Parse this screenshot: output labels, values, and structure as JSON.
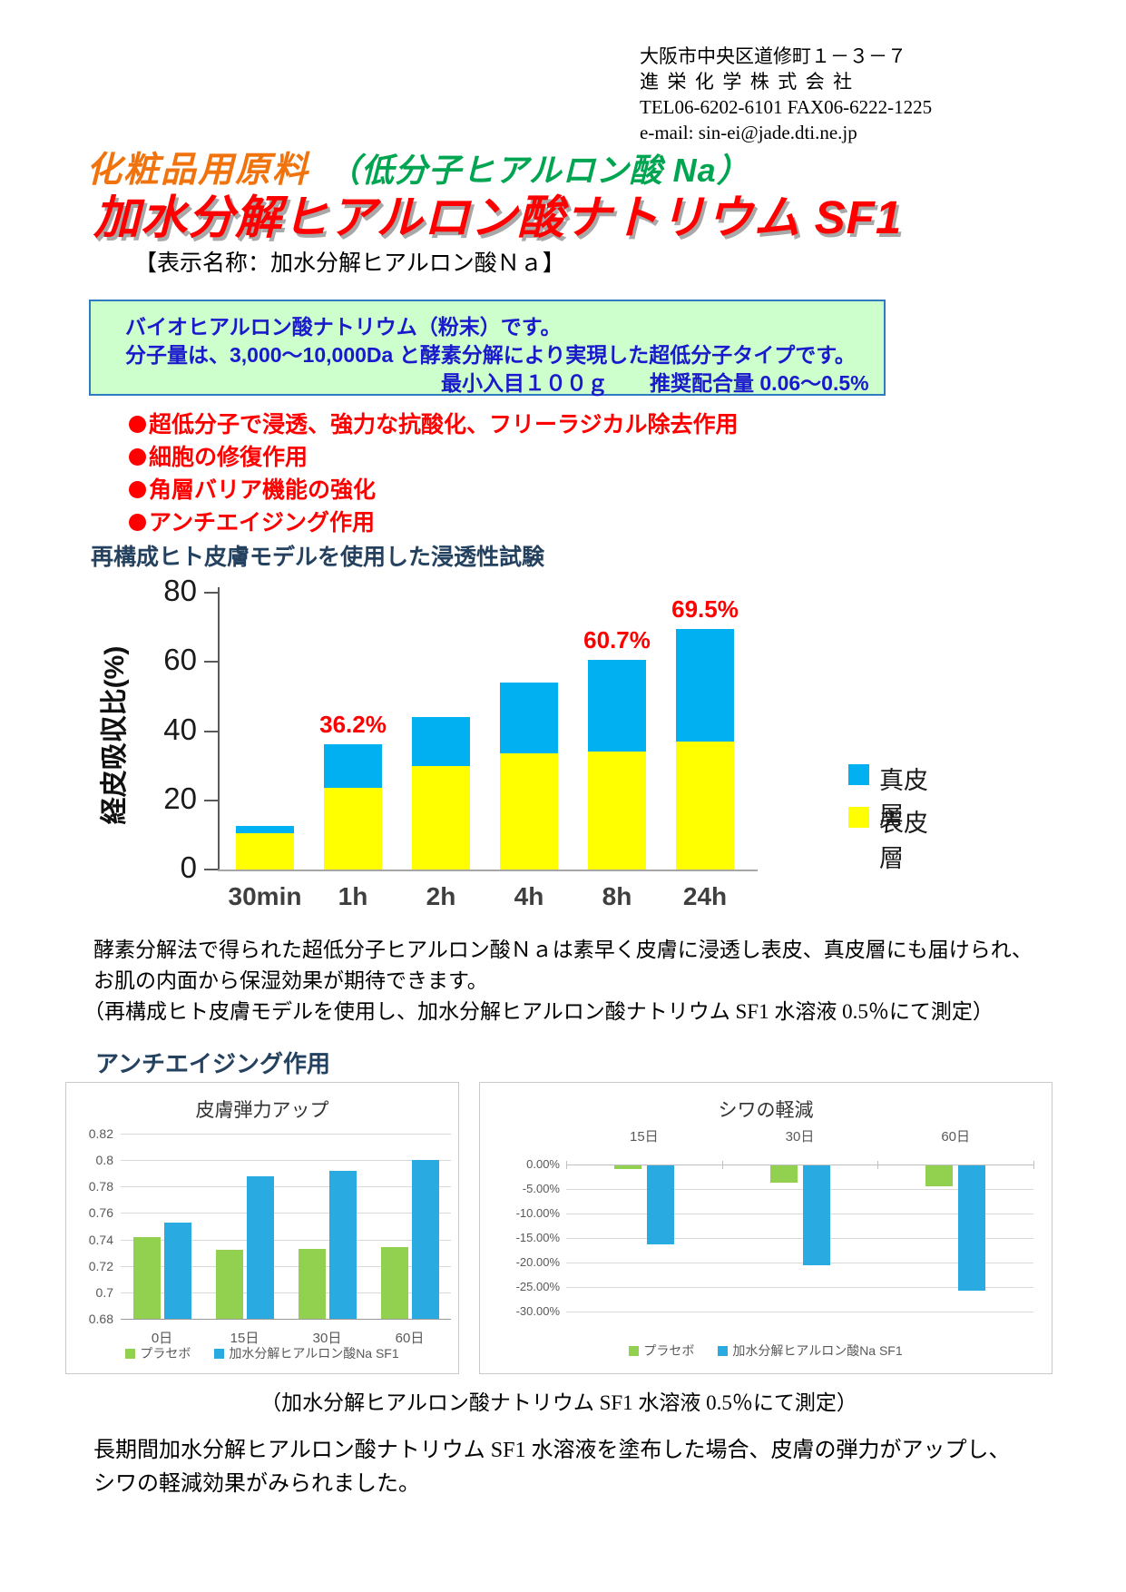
{
  "header": {
    "address": "大阪市中央区道修町１－３－７",
    "company": "進栄化学株式会社",
    "tel_fax": "TEL06-6202-6101 FAX06-6222-1225",
    "email": "e-mail: sin-ei@jade.dti.ne.jp"
  },
  "title": {
    "category": "化粧品用原料",
    "paren_note": "（低分子ヒアルロン酸 Na）",
    "product": "加水分解ヒアルロン酸ナトリウム SF1",
    "display_name": "【表示名称：加水分解ヒアルロン酸Ｎａ】"
  },
  "info_box": {
    "line1": "バイオヒアルロン酸ナトリウム（粉末）です。",
    "line2": "分子量は、3,000～10,000Da と酵素分解により実現した超低分子タイプです。",
    "min_quantity": "最小入目１００ｇ",
    "recommended_dose": "推奨配合量 0.06～0.5%"
  },
  "features": [
    "超低分子で浸透、強力な抗酸化、フリーラジカル除去作用",
    "細胞の修復作用",
    "角層バリア機能の強化",
    "アンチエイジング作用"
  ],
  "sections": {
    "antiaging_title": "アンチエイジング作用"
  },
  "permeation_note": [
    "酵素分解法で得られた超低分子ヒアルロン酸Ｎａは素早く皮膚に浸透し表皮、真皮層にも届けられ、",
    "お肌の内面から保湿効果が期待できます。",
    "（再構成ヒト皮膚モデルを使用し、加水分解ヒアルロン酸ナトリウム SF1 水溶液 0.5％にて測定）"
  ],
  "measurement_caption": "（加水分解ヒアルロン酸ナトリウム SF1 水溶液 0.5％にて測定）",
  "conclusion": [
    "長期間加水分解ヒアルロン酸ナトリウム SF1 水溶液を塗布した場合、皮膚の弾力がアップし、",
    "シワの軽減効果がみられました。"
  ],
  "colors": {
    "title_red": "#fe0000",
    "category_orange": "#f0730d",
    "subtitle_green": "#00a551",
    "info_box_bg": "#ccffcc",
    "info_box_border": "#2f7bc0",
    "info_text_blue": "#1a1acc",
    "heading_navy": "#24425f",
    "dermis_blue": "#00b0f0",
    "epidermis_yellow": "#ffff00",
    "placebo_green": "#92d050",
    "sf1_blue": "#29abe2"
  },
  "chart_data": [
    {
      "type": "bar",
      "stacked": true,
      "title": "再構成ヒト皮膚モデルを使用した浸透性試験",
      "categories": [
        "30min",
        "1h",
        "2h",
        "4h",
        "8h",
        "24h"
      ],
      "series": [
        {
          "name": "表皮層",
          "color": "#ffff00",
          "values": [
            10.5,
            23.5,
            30,
            33.5,
            34,
            37
          ]
        },
        {
          "name": "真皮層",
          "color": "#00b0f0",
          "values": [
            2,
            12.7,
            14,
            20.5,
            26.7,
            32.5
          ]
        }
      ],
      "totals": [
        12.5,
        36.2,
        44,
        54,
        60.7,
        69.5
      ],
      "total_labels": [
        "",
        "36.2%",
        "",
        "",
        "60.7%",
        "69.5%"
      ],
      "ylabel": "経皮吸収比(%)",
      "ylim": [
        0,
        80
      ],
      "yticks": [
        80,
        60,
        40,
        20,
        0
      ],
      "legend_position": "right",
      "grid": false
    },
    {
      "type": "bar",
      "title": "皮膚弾力アップ",
      "categories": [
        "0日",
        "15日",
        "30日",
        "60日"
      ],
      "series": [
        {
          "name": "プラセボ",
          "color": "#92d050",
          "values": [
            0.742,
            0.732,
            0.733,
            0.734
          ]
        },
        {
          "name": "加水分解ヒアルロン酸Na SF1",
          "color": "#29abe2",
          "values": [
            0.753,
            0.788,
            0.792,
            0.8
          ]
        }
      ],
      "ylim": [
        0.68,
        0.82
      ],
      "yticks": [
        0.82,
        0.8,
        0.78,
        0.76,
        0.74,
        0.72,
        0.7,
        0.68
      ],
      "legend_position": "bottom",
      "grid": true
    },
    {
      "type": "bar",
      "title": "シワの軽減",
      "categories": [
        "15日",
        "30日",
        "60日"
      ],
      "series": [
        {
          "name": "プラセボ",
          "color": "#92d050",
          "values": [
            -0.7,
            -3.5,
            -4.2
          ]
        },
        {
          "name": "加水分解ヒアルロン酸Na SF1",
          "color": "#29abe2",
          "values": [
            -16.2,
            -20.3,
            -25.6
          ]
        }
      ],
      "unit": "%",
      "ylim": [
        -30,
        0
      ],
      "ytick_labels": [
        "0.00%",
        "-5.00%",
        "-10.00%",
        "-15.00%",
        "-20.00%",
        "-25.00%",
        "-30.00%"
      ],
      "legend_position": "bottom",
      "grid": true
    }
  ]
}
